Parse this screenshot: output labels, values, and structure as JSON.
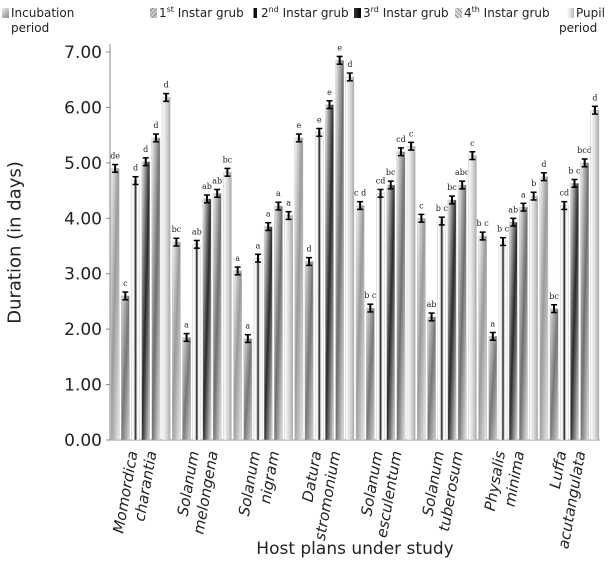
{
  "chart_data": {
    "type": "bar",
    "title": "",
    "xlabel": "Host plans under study",
    "ylabel": "Duration (in days)",
    "ylim": [
      0,
      7
    ],
    "yticks": [
      "0.00",
      "1.00",
      "2.00",
      "3.00",
      "4.00",
      "5.00",
      "6.00",
      "7.00"
    ],
    "grid": false,
    "legend_position": "top",
    "categories": [
      [
        "Momordica",
        "charantia"
      ],
      [
        "Solanum",
        "melongena"
      ],
      [
        "Solanum",
        "nigram"
      ],
      [
        "Datura",
        "stromonium"
      ],
      [
        "Solanum",
        "esculentum"
      ],
      [
        "Solanum",
        "tuberosum"
      ],
      [
        "Physalis",
        "minima"
      ],
      [
        "Luffa",
        "acutangulata"
      ]
    ],
    "series": [
      {
        "name": "Incubation period",
        "values": [
          4.9,
          3.57,
          3.05,
          5.45,
          4.23,
          4.0,
          3.68,
          4.75
        ],
        "labels": [
          "de",
          "bc",
          "a",
          "e",
          "c d",
          "c",
          "b c",
          "d"
        ]
      },
      {
        "name": "1st Instar grub",
        "values": [
          2.6,
          1.85,
          1.83,
          3.22,
          2.38,
          2.22,
          1.87,
          2.37
        ],
        "labels": [
          "c",
          "a",
          "a",
          "d",
          "b c",
          "ab",
          "a",
          "bc"
        ]
      },
      {
        "name": "2nd Instar grub",
        "values": [
          4.68,
          3.53,
          3.28,
          5.55,
          4.45,
          3.95,
          3.58,
          4.23
        ],
        "labels": [
          "d",
          "ab",
          "a",
          "e",
          "cd",
          "b c",
          "b c",
          "cd"
        ]
      },
      {
        "name": "3rd Instar grub",
        "values": [
          5.02,
          4.35,
          3.85,
          6.05,
          4.6,
          4.33,
          3.93,
          4.63
        ],
        "labels": [
          "d",
          "ab",
          "a",
          "e",
          "bc",
          "bc",
          "ab",
          "b c"
        ]
      },
      {
        "name": "4th Instar grub",
        "values": [
          5.45,
          4.45,
          4.22,
          6.85,
          5.2,
          4.6,
          4.2,
          5.0
        ],
        "labels": [
          "d",
          "ab",
          "a",
          "e",
          "cd",
          "abc",
          "a",
          "bcd"
        ]
      },
      {
        "name": "Pupil period",
        "values": [
          6.18,
          4.83,
          4.05,
          6.55,
          5.3,
          5.13,
          4.4,
          5.95
        ],
        "labels": [
          "d",
          "bc",
          "a",
          "d",
          "c",
          "c",
          "b",
          "d"
        ]
      }
    ],
    "legend": [
      {
        "text": "Incubation",
        "text2": "period",
        "sup": ""
      },
      {
        "text": "1",
        "sup": "st",
        "text2": " Instar grub"
      },
      {
        "text": "2",
        "sup": "nd",
        "text2": " Instar grub"
      },
      {
        "text": "3",
        "sup": "rd",
        "text2": " Instar grub"
      },
      {
        "text": "4",
        "sup": "th",
        "text2": " Instar grub"
      },
      {
        "text": "Pupil",
        "text2": "period",
        "sup": ""
      }
    ]
  }
}
